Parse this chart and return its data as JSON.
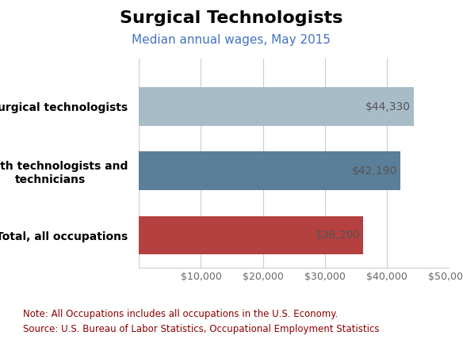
{
  "title": "Surgical Technologists",
  "subtitle": "Median annual wages, May 2015",
  "categories_display": [
    "Surgical technologists",
    "Health technologists and\ntechnicians",
    "Total, all occupations"
  ],
  "values": [
    44330,
    42190,
    36200
  ],
  "labels": [
    "$44,330",
    "$42,190",
    "$36,200"
  ],
  "bar_colors": [
    "#a8bcc8",
    "#5b7f99",
    "#b54040"
  ],
  "xlim": [
    0,
    50000
  ],
  "note": "Note: All Occupations includes all occupations in the U.S. Economy.",
  "source": "Source: U.S. Bureau of Labor Statistics, Occupational Employment Statistics",
  "title_fontsize": 16,
  "subtitle_fontsize": 11,
  "label_fontsize": 10,
  "ytick_fontsize": 10,
  "xtick_fontsize": 9,
  "note_fontsize": 8.5,
  "background_color": "#ffffff",
  "plot_bg_color": "#ffffff",
  "grid_color": "#cccccc",
  "subtitle_color": "#4472c4",
  "title_color": "#000000",
  "note_color": "#8b0000",
  "label_color": "#555555"
}
